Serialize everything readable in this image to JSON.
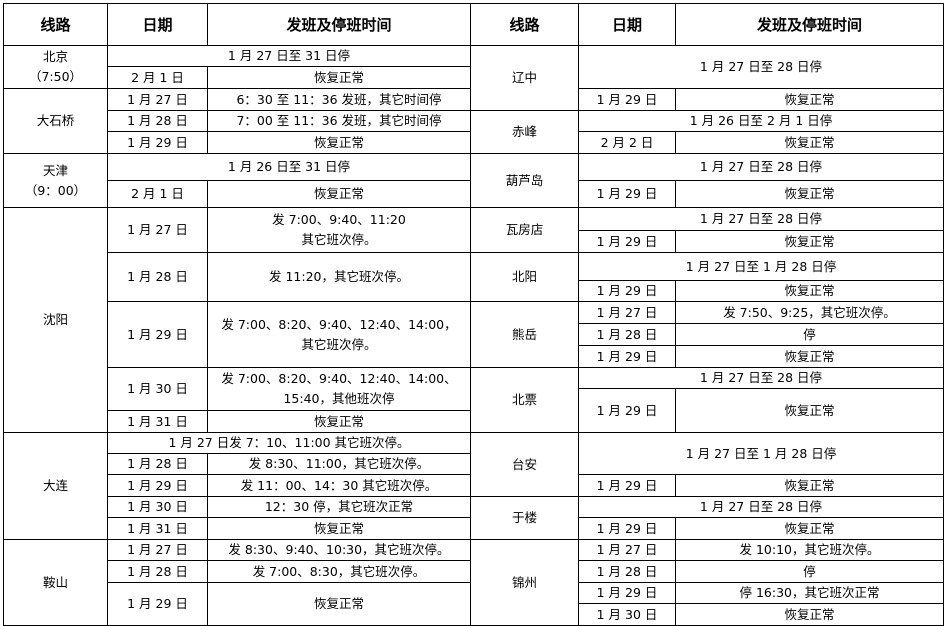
{
  "left": {
    "header": [
      "线路",
      "日期",
      "发班及停班时间"
    ],
    "groups": [
      {
        "route": "北京\n（7:50）",
        "rows": [
          {
            "merged": "1 月 27 日至 31 日停"
          },
          {
            "date": "2 月 1 日",
            "time": "恢复正常"
          }
        ]
      },
      {
        "route": "大石桥",
        "rows": [
          {
            "date": "1 月 27 日",
            "time": "6：30 至 11：36 发班，其它时间停"
          },
          {
            "date": "1 月 28 日",
            "time": "7：00 至 11：36 发班，其它时间停"
          },
          {
            "date": "1 月 29 日",
            "time": "恢复正常"
          }
        ]
      },
      {
        "route": "天津\n（9：00）",
        "rows": [
          {
            "merged": "1 月 26 日至 31 日停"
          },
          {
            "date": "2 月 1 日",
            "time": "恢复正常"
          }
        ]
      },
      {
        "route": "沈阳",
        "rows": [
          {
            "date": "1 月 27 日",
            "time": "发 7:00、9:40、11:20\n其它班次停。"
          },
          {
            "date": "1 月 28 日",
            "time": "发 11:20，其它班次停。"
          },
          {
            "date": "1 月 29 日",
            "time": "发 7:00、8:20、9:40、12:40、14:00，\n其它班次停。"
          },
          {
            "date": "1 月 30 日",
            "time": "发 7:00、8:20、9:40、12:40、14:00、\n15:40，其他班次停"
          },
          {
            "date": "1 月 31 日",
            "time": "恢复正常"
          }
        ]
      },
      {
        "route": "大连",
        "rows": [
          {
            "merged": "1 月 27 日发 7：10、11:00 其它班次停。"
          },
          {
            "date": "1 月 28 日",
            "time": "发 8:30、11:00，其它班次停。"
          },
          {
            "date": "1 月 29 日",
            "time": "发 11：00、14：30 其它班次停。"
          },
          {
            "date": "1 月 30 日",
            "time": "12：30 停，其它班次正常"
          },
          {
            "date": "1 月 31 日",
            "time": "恢复正常"
          }
        ]
      },
      {
        "route": "鞍山",
        "rows": [
          {
            "date": "1 月 27 日",
            "time": "发 8:30、9:40、10:30，其它班次停。"
          },
          {
            "date": "1 月 28 日",
            "time": "发 7:00、8:30，其它班次停。"
          },
          {
            "date": "1 月 29 日",
            "time": "恢复正常"
          }
        ]
      }
    ]
  },
  "right": {
    "header": [
      "线路",
      "日期",
      "发班及停班时间"
    ],
    "groups": [
      {
        "route": "辽中",
        "rows": [
          {
            "merged": "1 月 27 日至 28 日停"
          },
          {
            "date": "1 月 29 日",
            "time": "恢复正常"
          }
        ]
      },
      {
        "route": "赤峰",
        "rows": [
          {
            "merged": "1 月 26 日至 2 月 1 日停"
          },
          {
            "date": "2 月 2 日",
            "time": "恢复正常"
          }
        ]
      },
      {
        "route": "葫芦岛",
        "rows": [
          {
            "merged": "1 月 27 日至 28 日停"
          },
          {
            "date": "1 月 29 日",
            "time": "恢复正常"
          }
        ]
      },
      {
        "route": "瓦房店",
        "rows": [
          {
            "merged": "1 月 27 日至 28 日停"
          },
          {
            "date": "1 月 29 日",
            "time": "恢复正常"
          }
        ]
      },
      {
        "route": "北阳",
        "rows": [
          {
            "merged": "1 月 27 日至 1 月 28 日停"
          },
          {
            "date": "1 月 29 日",
            "time": "恢复正常"
          }
        ]
      },
      {
        "route": "熊岳",
        "rows": [
          {
            "date": "1 月 27 日",
            "time": "发 7:50、9:25，其它班次停。"
          },
          {
            "date": "1 月 28 日",
            "time": "停"
          },
          {
            "date": "1 月 29 日",
            "time": "恢复正常"
          }
        ]
      },
      {
        "route": "北票",
        "rows": [
          {
            "merged": "1 月 27 日至 28 日停"
          },
          {
            "date": "1 月 29 日",
            "time": "恢复正常"
          }
        ]
      },
      {
        "route": "台安",
        "rows": [
          {
            "merged": "1 月 27 日至 1 月 28 日停"
          },
          {
            "date": "1 月 29 日",
            "time": "恢复正常"
          }
        ]
      },
      {
        "route": "于楼",
        "rows": [
          {
            "merged": "1 月 27 日至 28 日停"
          },
          {
            "date": "1 月 29 日",
            "time": "恢复正常"
          }
        ]
      },
      {
        "route": "锦州",
        "rows": [
          {
            "date": "1 月 27 日",
            "time": "发 10:10，其它班次停。"
          },
          {
            "date": "1 月 28 日",
            "time": "停"
          },
          {
            "date": "1 月 29 日",
            "time": "停 16:30，其它班次正常"
          },
          {
            "date": "1 月 30 日",
            "time": "恢复正常"
          }
        ]
      }
    ]
  }
}
